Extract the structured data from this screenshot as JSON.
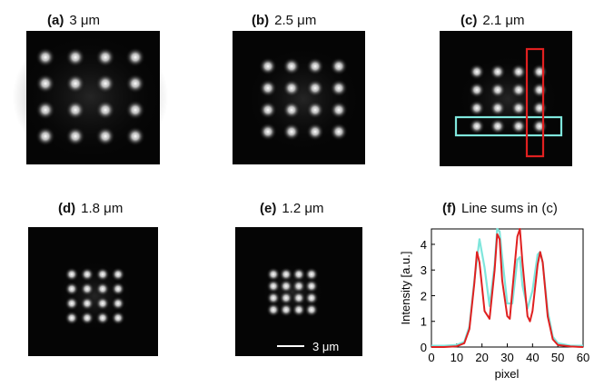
{
  "panels": [
    {
      "letter": "(a)",
      "title": "3 μm"
    },
    {
      "letter": "(b)",
      "title": "2.5 μm"
    },
    {
      "letter": "(c)",
      "title": "2.1 μm"
    },
    {
      "letter": "(d)",
      "title": "1.8 μm"
    },
    {
      "letter": "(e)",
      "title": "1.2 μm"
    },
    {
      "letter": "(f)",
      "title": "Line sums in (c)"
    }
  ],
  "scalebar_label": "3 μm",
  "colors": {
    "background": "#050505",
    "spot": "#ffffff",
    "row_box": "#7fe6dc",
    "column_box": "#e02020",
    "series_row": "#7fe6dc",
    "series_column": "#e02020"
  },
  "chart_data": {
    "type": "line",
    "title": "Line sums in (c)",
    "xlabel": "pixel",
    "ylabel": "Intensity [a.u.]",
    "xlim": [
      0,
      60
    ],
    "ylim": [
      0,
      4.6
    ],
    "xticks": [
      0,
      10,
      20,
      30,
      40,
      50,
      60
    ],
    "yticks": [
      0,
      1,
      2,
      3,
      4
    ],
    "grid": false,
    "series": [
      {
        "color": "#7fe6dc",
        "x": [
          0,
          5,
          10,
          13,
          15,
          17,
          19,
          21,
          23,
          25,
          26,
          27,
          28,
          30,
          32,
          34,
          35,
          36,
          38,
          40,
          42,
          43,
          44,
          46,
          48,
          50,
          55,
          60
        ],
        "y": [
          0.05,
          0.05,
          0.08,
          0.2,
          0.8,
          2.6,
          4.2,
          3.1,
          1.6,
          3.2,
          4.6,
          4.5,
          3.5,
          1.7,
          1.7,
          3.4,
          3.5,
          2.4,
          1.5,
          2.2,
          3.6,
          3.7,
          3.3,
          1.4,
          0.4,
          0.15,
          0.05,
          0.05
        ]
      },
      {
        "color": "#e02020",
        "x": [
          0,
          5,
          10,
          13,
          15,
          17,
          18,
          19,
          21,
          23,
          25,
          26,
          27,
          28,
          30,
          31,
          32,
          34,
          35,
          36,
          38,
          39,
          40,
          42,
          43,
          44,
          46,
          48,
          50,
          55,
          60
        ],
        "y": [
          0.0,
          0.0,
          0.03,
          0.15,
          0.7,
          2.5,
          3.7,
          3.3,
          1.4,
          1.1,
          3.0,
          4.4,
          4.2,
          2.6,
          1.2,
          1.1,
          2.2,
          4.3,
          4.6,
          3.3,
          1.2,
          1.0,
          1.4,
          3.2,
          3.7,
          3.3,
          1.2,
          0.3,
          0.08,
          0.02,
          0.0
        ]
      }
    ]
  }
}
